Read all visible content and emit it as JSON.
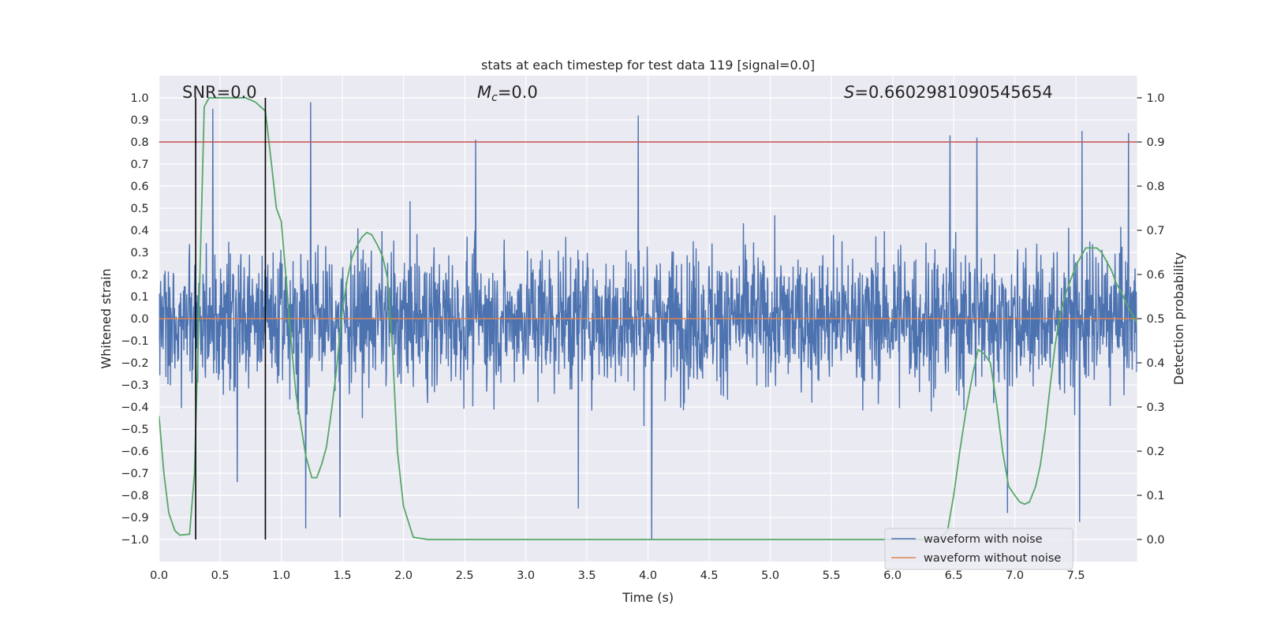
{
  "chart_data": {
    "type": "line",
    "title": "stats at each timestep for test data 119 [signal=0.0]",
    "xlabel": "Time (s)",
    "ylabel": "Whitened strain",
    "ylabel_right": "Detection probability",
    "xlim": [
      0.0,
      8.0
    ],
    "ylim": [
      -1.1,
      1.1
    ],
    "ylim_right": [
      -0.05,
      1.05
    ],
    "x_ticks": [
      0.0,
      0.5,
      1.0,
      1.5,
      2.0,
      2.5,
      3.0,
      3.5,
      4.0,
      4.5,
      5.0,
      5.5,
      6.0,
      6.5,
      7.0,
      7.5
    ],
    "x_tick_labels": [
      "0.0",
      "0.5",
      "1.0",
      "1.5",
      "2.0",
      "2.5",
      "3.0",
      "3.5",
      "4.0",
      "4.5",
      "5.0",
      "5.5",
      "6.0",
      "6.5",
      "7.0",
      "7.5"
    ],
    "y_ticks": [
      1.0,
      0.9,
      0.8,
      0.7,
      0.6,
      0.5,
      0.4,
      0.3,
      0.2,
      0.1,
      0.0,
      -0.1,
      -0.2,
      -0.3,
      -0.4,
      -0.5,
      -0.6,
      -0.7,
      -0.8,
      -0.9,
      -1.0
    ],
    "y_tick_labels": [
      "1.0",
      "0.9",
      "0.8",
      "0.7",
      "0.6",
      "0.5",
      "0.4",
      "0.3",
      "0.2",
      "0.1",
      "0.0",
      "−0.1",
      "−0.2",
      "−0.3",
      "−0.4",
      "−0.5",
      "−0.6",
      "−0.7",
      "−0.8",
      "−0.9",
      "−1.0"
    ],
    "y_right_ticks": [
      1.0,
      0.9,
      0.8,
      0.7,
      0.6,
      0.5,
      0.4,
      0.3,
      0.2,
      0.1,
      0.0
    ],
    "y_right_tick_labels": [
      "1.0",
      "0.9",
      "0.8",
      "0.7",
      "0.6",
      "0.5",
      "0.4",
      "0.3",
      "0.2",
      "0.1",
      "0.0"
    ],
    "grid": true,
    "annotations": {
      "snr": "SNR=0.0",
      "mc_symbol": "M",
      "mc_subscript": "c",
      "mc_value": "=0.0",
      "s_symbol": "S",
      "s_value": "=0.6602981090545654"
    },
    "threshold_right": 0.9,
    "vertical_lines_x": [
      0.3,
      0.87
    ],
    "series": [
      {
        "name": "waveform with noise",
        "color": "#4c72b0",
        "axis": "left",
        "description": "dense whitened strain noise, typical amplitude about 0.4, spikes up to 0.98 and down to -1.0",
        "typical_abs": 0.4,
        "spikes": [
          [
            0.44,
            0.95
          ],
          [
            1.24,
            0.98
          ],
          [
            2.59,
            0.81
          ],
          [
            3.92,
            0.92
          ],
          [
            6.47,
            0.83
          ],
          [
            6.69,
            0.82
          ],
          [
            7.55,
            0.85
          ],
          [
            7.93,
            0.84
          ],
          [
            0.64,
            -0.74
          ],
          [
            1.2,
            -0.95
          ],
          [
            1.48,
            -0.9
          ],
          [
            3.43,
            -0.86
          ],
          [
            4.03,
            -1.0
          ],
          [
            6.94,
            -0.88
          ],
          [
            7.53,
            -0.92
          ]
        ]
      },
      {
        "name": "waveform without noise",
        "color": "#dd8452",
        "axis": "left",
        "x": [
          0.0,
          8.0
        ],
        "y": [
          0.0,
          0.0
        ]
      },
      {
        "name": "detection probability",
        "color": "#55a868",
        "axis": "right",
        "x": [
          0.0,
          0.04,
          0.08,
          0.13,
          0.17,
          0.25,
          0.29,
          0.33,
          0.37,
          0.41,
          0.46,
          0.54,
          0.62,
          0.71,
          0.79,
          0.87,
          0.92,
          0.96,
          1.0,
          1.04,
          1.08,
          1.12,
          1.16,
          1.2,
          1.25,
          1.29,
          1.33,
          1.37,
          1.41,
          1.45,
          1.5,
          1.54,
          1.58,
          1.62,
          1.66,
          1.7,
          1.74,
          1.79,
          1.83,
          1.87,
          1.91,
          1.95,
          2.0,
          2.08,
          2.2,
          3.0,
          4.0,
          5.0,
          6.0,
          6.25,
          6.38,
          6.45,
          6.5,
          6.55,
          6.6,
          6.66,
          6.7,
          6.75,
          6.8,
          6.85,
          6.9,
          6.95,
          7.0,
          7.04,
          7.08,
          7.12,
          7.17,
          7.21,
          7.25,
          7.29,
          7.33,
          7.37,
          7.42,
          7.46,
          7.5,
          7.54,
          7.58,
          7.62,
          7.67,
          7.71,
          7.75,
          7.79,
          7.83,
          7.87,
          7.92,
          7.96,
          8.0
        ],
        "y": [
          0.28,
          0.15,
          0.06,
          0.02,
          0.01,
          0.012,
          0.15,
          0.55,
          0.98,
          1.0,
          1.0,
          1.0,
          1.0,
          1.0,
          0.99,
          0.97,
          0.85,
          0.75,
          0.72,
          0.59,
          0.45,
          0.33,
          0.26,
          0.19,
          0.14,
          0.14,
          0.17,
          0.21,
          0.29,
          0.38,
          0.52,
          0.59,
          0.64,
          0.665,
          0.685,
          0.695,
          0.69,
          0.665,
          0.64,
          0.59,
          0.43,
          0.2,
          0.075,
          0.005,
          0.0,
          0.0,
          0.0,
          0.0,
          0.0,
          0.0,
          0.0,
          0.02,
          0.1,
          0.2,
          0.29,
          0.38,
          0.43,
          0.42,
          0.4,
          0.31,
          0.2,
          0.12,
          0.1,
          0.085,
          0.08,
          0.085,
          0.12,
          0.17,
          0.25,
          0.35,
          0.44,
          0.51,
          0.56,
          0.59,
          0.62,
          0.64,
          0.66,
          0.66,
          0.66,
          0.65,
          0.63,
          0.61,
          0.58,
          0.56,
          0.53,
          0.51,
          0.49
        ]
      }
    ],
    "legend": {
      "placement": "lower-right",
      "entries": [
        {
          "label": "waveform with noise",
          "color": "#4c72b0"
        },
        {
          "label": "waveform without noise",
          "color": "#dd8452"
        }
      ]
    },
    "colors": {
      "plot_bg": "#eaeaf2",
      "grid": "#ffffff",
      "threshold": "#c44e52",
      "vline": "#000000"
    }
  }
}
